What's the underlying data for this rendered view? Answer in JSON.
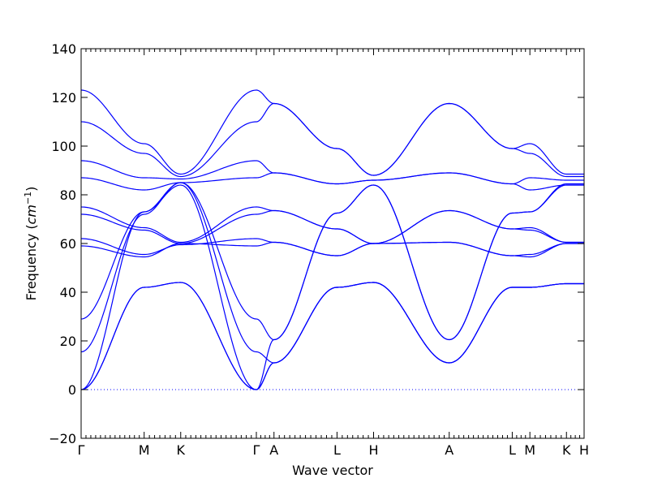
{
  "chart_data": {
    "type": "line",
    "xlabel": "Wave vector",
    "ylabel": "Frequency",
    "ylabel_unit": "cm",
    "ylabel_unit_exp": "−1",
    "ylim": [
      -20,
      140
    ],
    "yticks": [
      -20,
      0,
      20,
      40,
      60,
      80,
      100,
      120,
      140
    ],
    "high_symmetry_ticks": [
      {
        "label": "Γ",
        "x": 0.0
      },
      {
        "label": "M",
        "x": 0.5
      },
      {
        "label": "K",
        "x": 0.79
      },
      {
        "label": "Γ",
        "x": 1.39
      },
      {
        "label": "A",
        "x": 1.53
      },
      {
        "label": "L",
        "x": 2.03
      },
      {
        "label": "H",
        "x": 2.32
      },
      {
        "label": "A",
        "x": 2.92
      },
      {
        "label": "L",
        "x": 3.42
      },
      {
        "label": "M",
        "x": 3.56
      },
      {
        "label": "K",
        "x": 3.85
      },
      {
        "label": "H",
        "x": 3.99
      }
    ],
    "zero_line": true,
    "line_color": "#0000ff",
    "zero_line_color": "#0000ff",
    "series": [
      {
        "x": [
          0,
          0.5,
          0.79,
          1.39,
          1.53,
          2.03,
          2.32,
          2.92,
          3.42,
          3.56,
          3.85,
          3.99
        ],
        "values": [
          0,
          42,
          44,
          0,
          11,
          42,
          44,
          11,
          42,
          42,
          43.5,
          43.5
        ]
      },
      {
        "x": [
          0,
          0.5,
          0.79,
          1.39,
          1.53,
          2.03,
          2.32,
          2.92,
          3.42,
          3.56,
          3.85,
          3.99
        ],
        "values": [
          0,
          42,
          44,
          0,
          11,
          42,
          44,
          11,
          42,
          42,
          43.5,
          43.5
        ]
      },
      {
        "x": [
          0,
          0.5,
          0.79,
          1.39,
          1.53,
          2.03,
          2.32,
          2.92,
          3.42,
          3.56,
          3.85,
          3.99
        ],
        "values": [
          0,
          73,
          84,
          0,
          20.5,
          72.5,
          84,
          20.5,
          72.5,
          73,
          84.5,
          84.5
        ]
      },
      {
        "x": [
          0,
          0.5,
          0.79,
          1.39,
          1.53,
          2.03,
          2.32,
          2.92,
          3.42,
          3.56,
          3.85,
          3.99
        ],
        "values": [
          15.5,
          72,
          85,
          15.5,
          11,
          42,
          44,
          11,
          42,
          42,
          43.5,
          43.5
        ]
      },
      {
        "x": [
          0,
          0.5,
          0.79,
          1.39,
          1.53,
          2.03,
          2.32,
          2.92,
          3.42,
          3.56,
          3.85,
          3.99
        ],
        "values": [
          29,
          73,
          85,
          29,
          20.5,
          72.5,
          84,
          20.5,
          72.5,
          73,
          84,
          84
        ]
      },
      {
        "x": [
          0,
          0.5,
          0.79,
          1.39,
          1.53,
          2.03,
          2.32,
          2.92,
          3.42,
          3.56,
          3.85,
          3.99
        ],
        "values": [
          59,
          54.5,
          60,
          59,
          60.5,
          55,
          60,
          60.5,
          55,
          54.5,
          60,
          60
        ]
      },
      {
        "x": [
          0,
          0.5,
          0.79,
          1.39,
          1.53,
          2.03,
          2.32,
          2.92,
          3.42,
          3.56,
          3.85,
          3.99
        ],
        "values": [
          62,
          55.5,
          59.5,
          62,
          60.5,
          55,
          60,
          60.5,
          55,
          55.5,
          60,
          60
        ]
      },
      {
        "x": [
          0,
          0.5,
          0.79,
          1.39,
          1.53,
          2.03,
          2.32,
          2.92,
          3.42,
          3.56,
          3.85,
          3.99
        ],
        "values": [
          72,
          65.5,
          60,
          72,
          73.5,
          66,
          60,
          73.5,
          66,
          65.5,
          60.5,
          60.5
        ]
      },
      {
        "x": [
          0,
          0.5,
          0.79,
          1.39,
          1.53,
          2.03,
          2.32,
          2.92,
          3.42,
          3.56,
          3.85,
          3.99
        ],
        "values": [
          75,
          66.5,
          60.5,
          75,
          73.5,
          66,
          60,
          73.5,
          66,
          66.5,
          60.5,
          60.5
        ]
      },
      {
        "x": [
          0,
          0.5,
          0.79,
          1.39,
          1.53,
          2.03,
          2.32,
          2.92,
          3.42,
          3.56,
          3.85,
          3.99
        ],
        "values": [
          87,
          82,
          85,
          87,
          89,
          84.5,
          86,
          89,
          84.5,
          82,
          84,
          84
        ]
      },
      {
        "x": [
          0,
          0.5,
          0.79,
          1.39,
          1.53,
          2.03,
          2.32,
          2.92,
          3.42,
          3.56,
          3.85,
          3.99
        ],
        "values": [
          94,
          87,
          86.5,
          94,
          89,
          84.5,
          86,
          89,
          84.5,
          87,
          86,
          86
        ]
      },
      {
        "x": [
          0,
          0.5,
          0.79,
          1.39,
          1.53,
          2.03,
          2.32,
          2.92,
          3.42,
          3.56,
          3.85,
          3.99
        ],
        "values": [
          110,
          97,
          87.5,
          110,
          117.5,
          99,
          88,
          117.5,
          99,
          97,
          87.5,
          87.5
        ]
      },
      {
        "x": [
          0,
          0.5,
          0.79,
          1.39,
          1.53,
          2.03,
          2.32,
          2.92,
          3.42,
          3.56,
          3.85,
          3.99
        ],
        "values": [
          123,
          101,
          88.5,
          123,
          117.5,
          99,
          88,
          117.5,
          99,
          101,
          88.5,
          88.5
        ]
      }
    ]
  }
}
